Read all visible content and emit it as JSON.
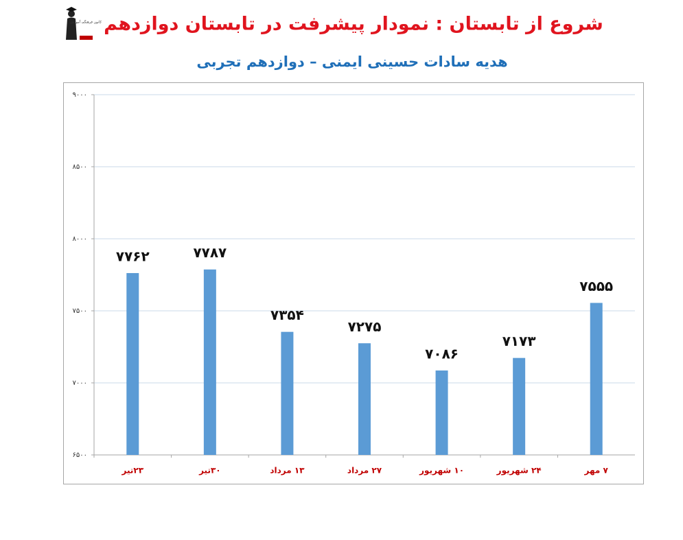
{
  "chart_data": {
    "type": "bar",
    "title": "شروع از تابستان : نمودار پیشرفت در تابستان دوازدهم",
    "subtitle": "هدیه سادات حسینی ایمنی – دوازدهم تجربی",
    "logo_text": "کانون فرهنگی آموزش",
    "categories": [
      "۲۳تیر",
      "۳۰تیر",
      "۱۳ مرداد",
      "۲۷ مرداد",
      "۱۰ شهریور",
      "۲۴ شهریور",
      "۷ مهر"
    ],
    "values": [
      7762,
      7787,
      7354,
      7275,
      7086,
      7173,
      7555
    ],
    "value_labels": [
      "۷۷۶۲",
      "۷۷۸۷",
      "۷۳۵۴",
      "۷۲۷۵",
      "۷۰۸۶",
      "۷۱۷۳",
      "۷۵۵۵"
    ],
    "color": "#5b9bd5",
    "ylim": [
      6500,
      9000
    ],
    "yticks": [
      {
        "value": 6500,
        "label": "۶۵۰۰"
      },
      {
        "value": 7000,
        "label": "۷۰۰۰"
      },
      {
        "value": 7500,
        "label": "۷۵۰۰"
      },
      {
        "value": 8000,
        "label": "۸۰۰۰"
      },
      {
        "value": 8500,
        "label": "۸۵۰۰"
      },
      {
        "value": 9000,
        "label": "۹۰۰۰"
      }
    ],
    "grid": true
  }
}
